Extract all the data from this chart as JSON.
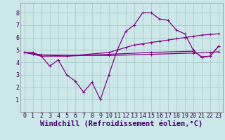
{
  "xlabel": "Windchill (Refroidissement éolien,°C)",
  "bg_color": "#cce8e8",
  "grid_color": "#aacccc",
  "line_color": "#880088",
  "xlim": [
    -0.5,
    23.5
  ],
  "ylim": [
    0,
    8.8
  ],
  "xticks": [
    0,
    1,
    2,
    3,
    4,
    5,
    6,
    7,
    8,
    9,
    10,
    11,
    12,
    13,
    14,
    15,
    16,
    17,
    18,
    19,
    20,
    21,
    22,
    23
  ],
  "yticks": [
    1,
    2,
    3,
    4,
    5,
    6,
    7,
    8
  ],
  "series1": {
    "x": [
      0,
      1,
      2,
      3,
      4,
      5,
      6,
      7,
      8,
      9,
      10,
      11,
      12,
      13,
      14,
      15,
      16,
      17,
      18,
      19,
      20,
      21,
      22,
      23
    ],
    "y": [
      4.8,
      4.8,
      4.5,
      3.7,
      4.2,
      3.0,
      2.5,
      1.6,
      2.4,
      1.0,
      3.0,
      5.0,
      6.5,
      7.0,
      8.0,
      8.0,
      7.5,
      7.4,
      6.6,
      6.3,
      5.0,
      4.4,
      4.5,
      5.3
    ]
  },
  "series2": {
    "x": [
      0,
      2,
      5,
      10,
      11,
      12,
      13,
      14,
      15,
      16,
      17,
      18,
      19,
      20,
      21,
      22,
      23
    ],
    "y": [
      4.8,
      4.5,
      4.5,
      4.8,
      5.0,
      5.2,
      5.4,
      5.5,
      5.6,
      5.7,
      5.8,
      5.9,
      6.0,
      6.1,
      6.2,
      6.25,
      6.3
    ]
  },
  "series3": {
    "x": [
      0,
      1,
      2,
      5,
      10,
      15,
      20,
      21,
      22,
      23
    ],
    "y": [
      4.8,
      4.7,
      4.6,
      4.5,
      4.65,
      4.8,
      4.9,
      4.45,
      4.5,
      5.3
    ]
  },
  "series4": {
    "x": [
      0,
      1,
      2,
      10,
      15,
      20,
      22,
      23
    ],
    "y": [
      4.8,
      4.7,
      4.6,
      4.55,
      4.65,
      4.75,
      4.8,
      4.85
    ]
  },
  "xlabel_color": "#440077",
  "xlabel_fontsize": 7.5,
  "tick_fontsize": 6.0,
  "line_width": 0.9,
  "marker_size": 2.5
}
